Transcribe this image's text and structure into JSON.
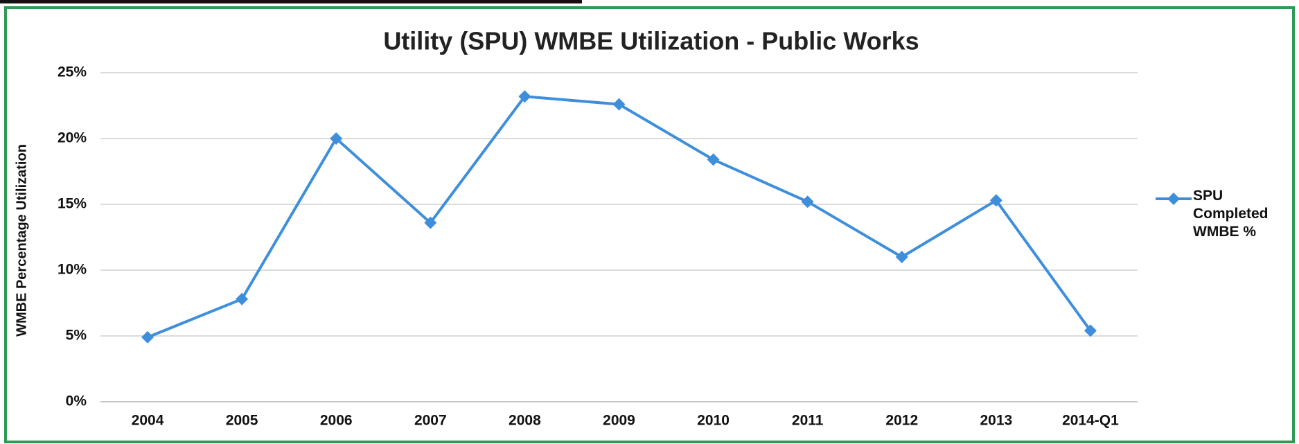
{
  "chart_data": {
    "type": "line",
    "title": "Utility (SPU) WMBE Utilization - Public Works",
    "y_label": "WMBE Percentage Utilization",
    "categories": [
      "2004",
      "2005",
      "2006",
      "2007",
      "2008",
      "2009",
      "2010",
      "2011",
      "2012",
      "2013",
      "2014-Q1"
    ],
    "series": [
      {
        "name": "SPU Completed WMBE %",
        "color": "#3e8fdb",
        "values": [
          4.9,
          7.8,
          20.0,
          13.6,
          23.2,
          22.6,
          18.4,
          15.2,
          11.0,
          15.3,
          5.4
        ]
      }
    ],
    "ylim": [
      0,
      25
    ],
    "yticks": [
      {
        "value": 0,
        "label": "0%"
      },
      {
        "value": 5,
        "label": "5%"
      },
      {
        "value": 10,
        "label": "10%"
      },
      {
        "value": 15,
        "label": "15%"
      },
      {
        "value": 20,
        "label": "20%"
      },
      {
        "value": 25,
        "label": "25%"
      }
    ],
    "grid": true,
    "legend": "right"
  }
}
